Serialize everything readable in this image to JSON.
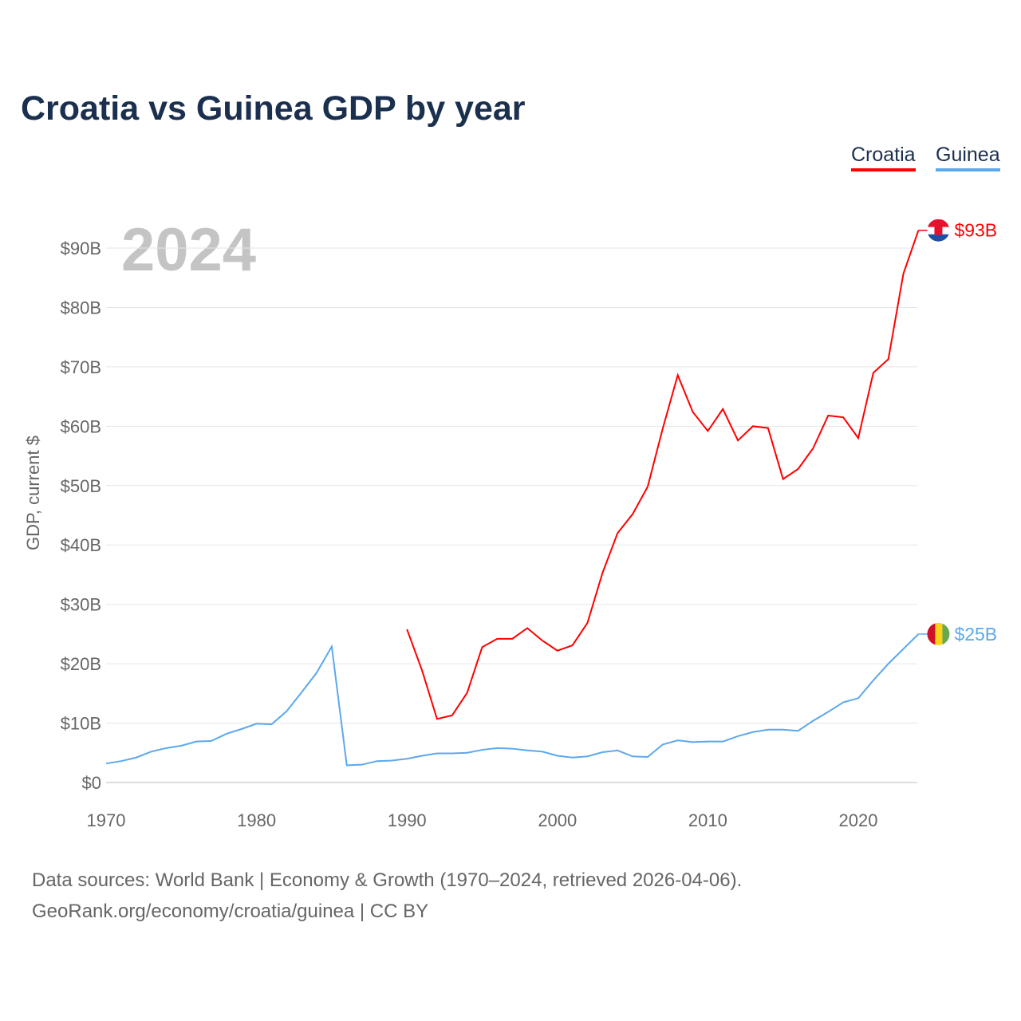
{
  "chart_data": {
    "type": "line",
    "title": "Croatia vs Guinea GDP by year",
    "ylabel": "GDP, current $",
    "xlabel": "",
    "year_label": "2024",
    "xlim": [
      1970,
      2024
    ],
    "ylim": [
      0,
      95
    ],
    "x_ticks": [
      "1970",
      "1980",
      "1990",
      "2000",
      "2010",
      "2020"
    ],
    "x_tick_values": [
      1970,
      1980,
      1990,
      2000,
      2010,
      2020
    ],
    "y_ticks": [
      "$0",
      "$10B",
      "$20B",
      "$30B",
      "$40B",
      "$50B",
      "$60B",
      "$70B",
      "$80B",
      "$90B"
    ],
    "y_tick_values": [
      0,
      10,
      20,
      30,
      40,
      50,
      60,
      70,
      80,
      90
    ],
    "grid": true,
    "legend_position": "top-right",
    "series": [
      {
        "name": "Croatia",
        "color": "#ff0000",
        "end_label": "$93B",
        "start_year": 1990,
        "values": [
          25.8,
          18.9,
          10.7,
          11.3,
          15.1,
          22.8,
          24.2,
          24.2,
          26.0,
          23.9,
          22.2,
          23.1,
          26.9,
          35.3,
          42.0,
          45.2,
          49.8,
          59.6,
          68.6,
          62.4,
          59.2,
          62.9,
          57.6,
          60.0,
          59.7,
          51.1,
          52.8,
          56.3,
          61.8,
          61.5,
          58.0,
          69.0,
          71.3,
          85.7,
          93.0
        ]
      },
      {
        "name": "Guinea",
        "color": "#5ca8ec",
        "end_label": "$25B",
        "start_year": 1970,
        "values": [
          3.2,
          3.6,
          4.2,
          5.2,
          5.8,
          6.2,
          6.9,
          7.0,
          8.2,
          9.0,
          9.9,
          9.8,
          12.0,
          15.2,
          18.5,
          22.9,
          2.9,
          3.0,
          3.6,
          3.7,
          4.0,
          4.5,
          4.9,
          4.9,
          5.0,
          5.5,
          5.8,
          5.7,
          5.4,
          5.2,
          4.5,
          4.2,
          4.4,
          5.1,
          5.4,
          4.4,
          4.3,
          6.4,
          7.1,
          6.8,
          6.9,
          6.9,
          7.8,
          8.5,
          8.9,
          8.9,
          8.7,
          10.4,
          11.9,
          13.5,
          14.2,
          17.2,
          20.0,
          22.5,
          25.0
        ]
      }
    ]
  },
  "source": {
    "line1": "Data sources: World Bank | Economy & Growth (1970–2024, retrieved 2026-04-06).",
    "line2": "GeoRank.org/economy/croatia/guinea | CC BY"
  }
}
